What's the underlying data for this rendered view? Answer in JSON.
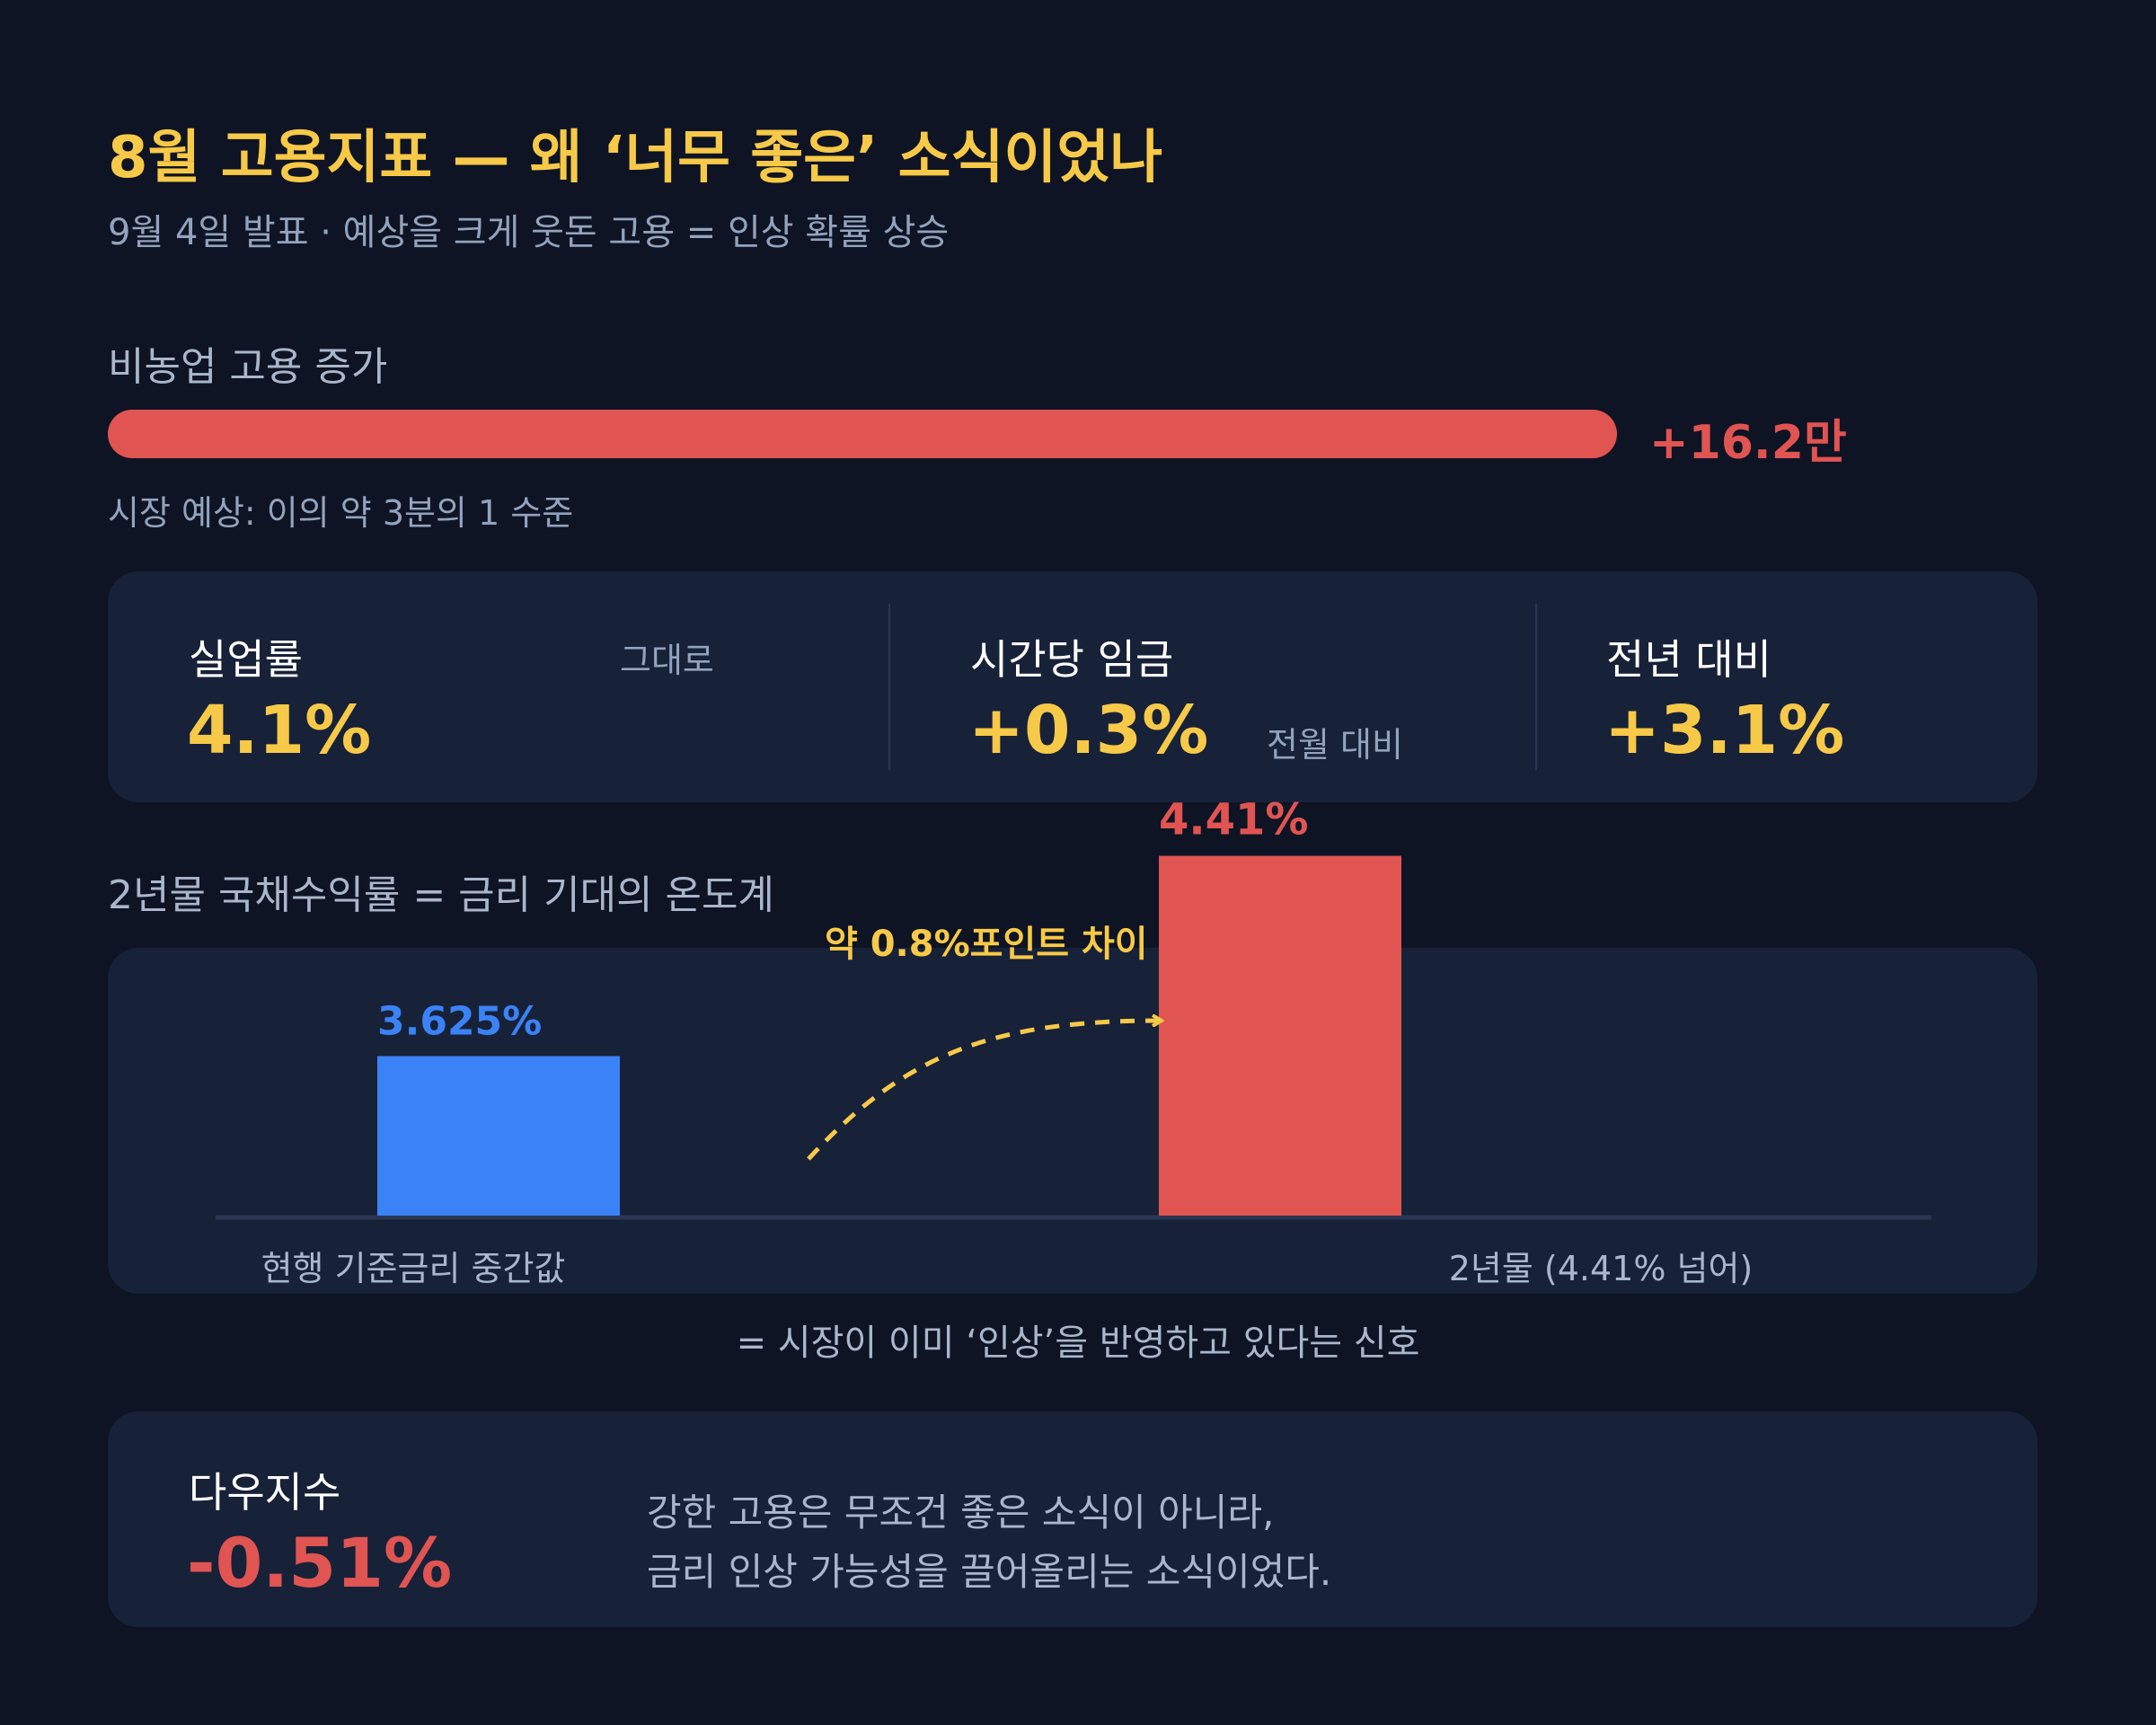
{
  "header": {
    "title": "8월 고용지표 — 왜 ‘너무 좋은’ 소식이었나",
    "subtitle": "9월 4일 발표 · 예상을 크게 웃돈 고용 = 인상 확률 상승"
  },
  "payrolls": {
    "label": "비농업 고용 증가",
    "value": "+16.2만",
    "fill_fraction": 1.0,
    "note": "시장 예상: 이의 약 3분의 1 수준",
    "color": "#e05452"
  },
  "stats": [
    {
      "label": "실업률",
      "value": "4.1%",
      "note": "그대로"
    },
    {
      "label": "시간당 임금",
      "value": "+0.3%",
      "note": "전월 대비"
    },
    {
      "label": "전년 대비",
      "value": "+3.1%",
      "note": ""
    }
  ],
  "yields": {
    "section_label": "2년물 국채수익률 = 금리 기대의 온도계",
    "footer_note": "= 시장이 이미 ‘인상’을 반영하고 있다는 신호"
  },
  "chart_data": {
    "type": "bar",
    "categories": [
      "현행 기준금리 중간값",
      "2년물 (4.41% 넘어)"
    ],
    "values": [
      3.625,
      4.41
    ],
    "data_labels": [
      "3.625%",
      "4.41%"
    ],
    "colors": [
      "#3b82f6",
      "#e05452"
    ],
    "annotation": "약 0.8%포인트 차이",
    "annotation_color": "#f7c948"
  },
  "dow": {
    "label": "다우지수",
    "value": "-0.51%",
    "lines": [
      "강한 고용은 무조건 좋은 소식이 아니라,",
      "금리 인상 가능성을 끌어올리는 소식이었다."
    ]
  }
}
